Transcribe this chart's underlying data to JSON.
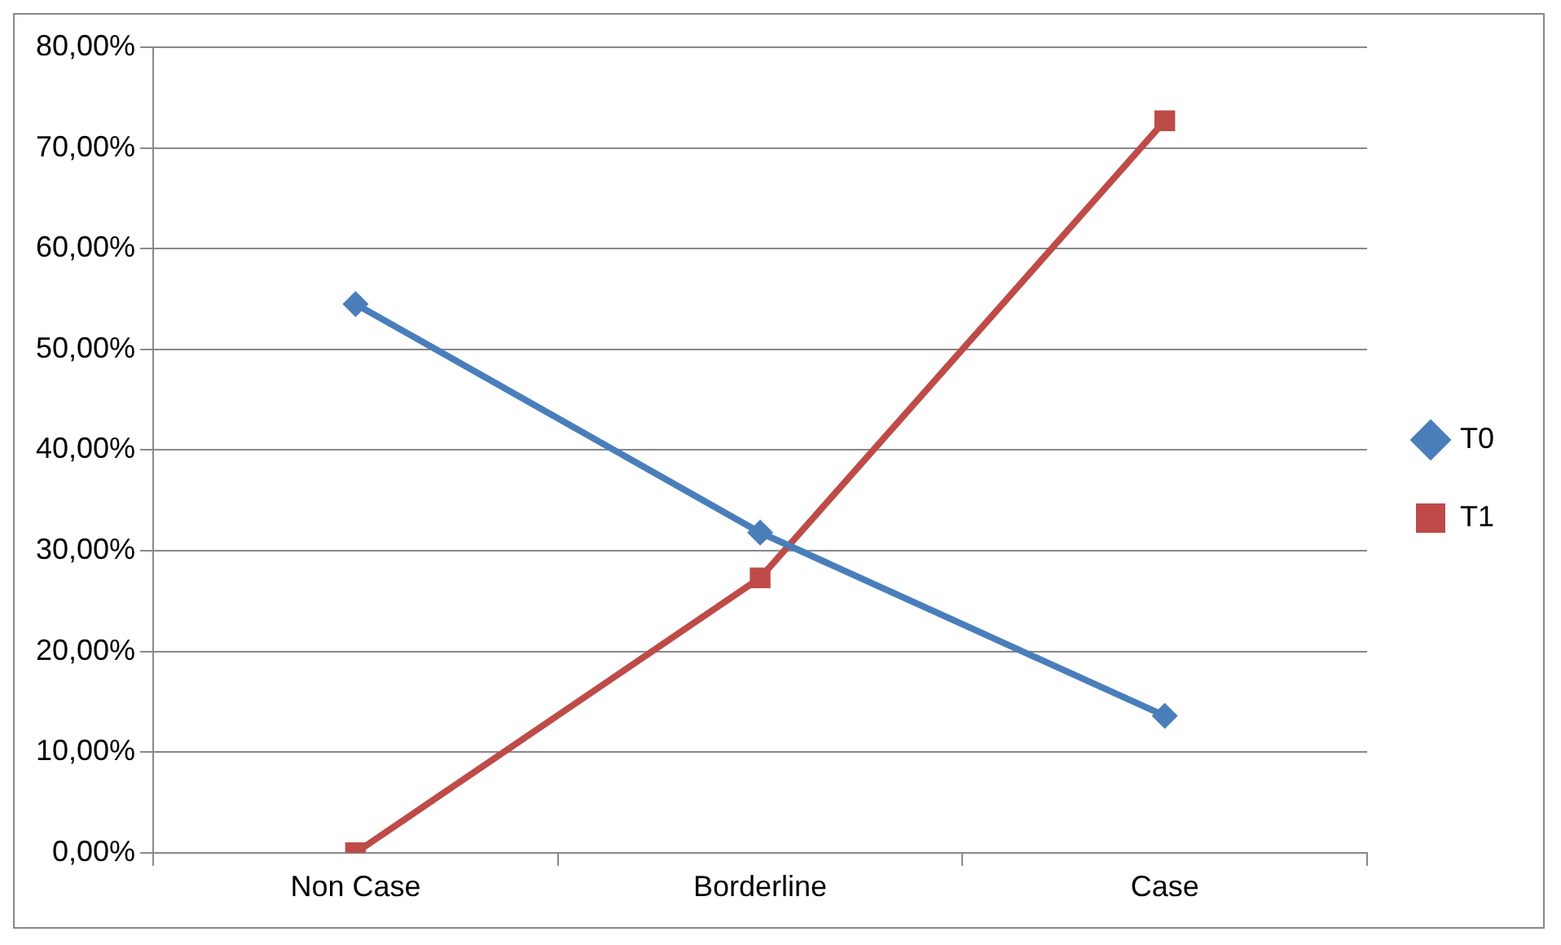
{
  "chart_data": {
    "type": "line",
    "categories": [
      "Non Case",
      "Borderline",
      "Case"
    ],
    "series": [
      {
        "name": "T0",
        "color": "#4a7ebb",
        "values": [
          54.5,
          31.8,
          13.6
        ],
        "marker": "diamond"
      },
      {
        "name": "T1",
        "color": "#be4b48",
        "values": [
          0,
          27.3,
          72.7
        ],
        "marker": "square"
      }
    ],
    "ylim": [
      0,
      80
    ],
    "yticks": [
      {
        "value": 0,
        "label": "0,00%"
      },
      {
        "value": 10,
        "label": "10,00%"
      },
      {
        "value": 20,
        "label": "20,00%"
      },
      {
        "value": 30,
        "label": "30,00%"
      },
      {
        "value": 40,
        "label": "40,00%"
      },
      {
        "value": 50,
        "label": "50,00%"
      },
      {
        "value": 60,
        "label": "60,00%"
      },
      {
        "value": 70,
        "label": "70,00%"
      },
      {
        "value": 80,
        "label": "80,00%"
      }
    ],
    "grid": "y",
    "legend": "right"
  }
}
